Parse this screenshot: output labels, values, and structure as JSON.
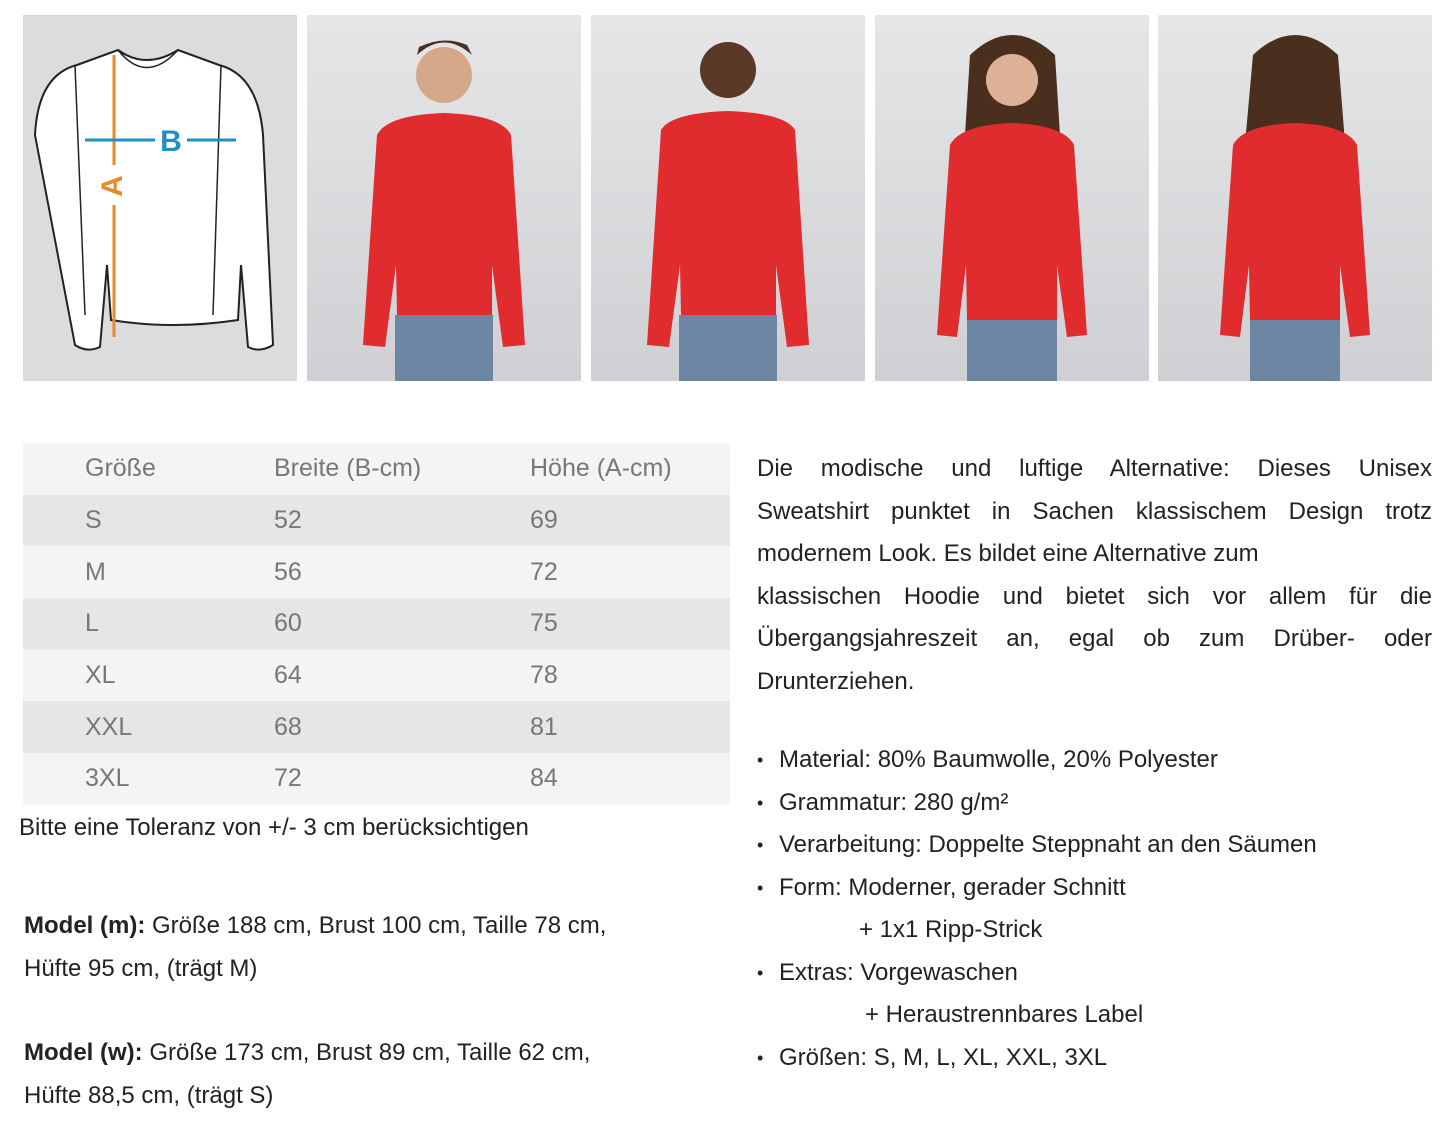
{
  "diagram": {
    "label_a": "A",
    "label_b": "B",
    "color_a": "#e8892b",
    "color_b": "#1f8fc4"
  },
  "photos": [
    {
      "name": "model-m-front"
    },
    {
      "name": "model-m-back"
    },
    {
      "name": "model-w-front"
    },
    {
      "name": "model-w-back"
    }
  ],
  "garment_color": "#e02b2f",
  "table": {
    "headers": [
      "Größe",
      "Breite (B-cm)",
      "Höhe (A-cm)"
    ],
    "rows": [
      [
        "S",
        "52",
        "69"
      ],
      [
        "M",
        "56",
        "72"
      ],
      [
        "L",
        "60",
        "75"
      ],
      [
        "XL",
        "64",
        "78"
      ],
      [
        "XXL",
        "68",
        "81"
      ],
      [
        "3XL",
        "72",
        "84"
      ]
    ]
  },
  "tolerance": "Bitte eine Toleranz von +/- 3 cm berücksichtigen",
  "model_m": {
    "label": "Model (m):",
    "line1": "Größe 188 cm, Brust 100 cm, Taille 78 cm,",
    "line2": "Hüfte 95 cm, (trägt M)"
  },
  "model_w": {
    "label": "Model (w):",
    "line1": "Größe 173 cm, Brust 89 cm, Taille 62 cm,",
    "line2": "Hüfte 88,5 cm, (trägt S)"
  },
  "description": [
    "Die modische und luftige Alternative: Dieses Unisex",
    "Sweatshirt punktet in Sachen klassischem Design trotz",
    "modernem Look. Es bildet eine Alternative zum",
    "klassischen Hoodie und bietet sich vor allem für die",
    "Übergangsjahreszeit an, egal ob zum Drüber- oder",
    "Drunterziehen."
  ],
  "specs": {
    "material": "Material: 80% Baumwolle, 20% Polyester",
    "grammatur": "Grammatur: 280 g/m²",
    "verarbeitung": "Verarbeitung: Doppelte Steppnaht an den Säumen",
    "form": "Form: Moderner, gerader Schnitt",
    "form_cont": "+ 1x1 Ripp-Strick",
    "extras": "Extras: Vorgewaschen",
    "extras_cont": "+ Heraustrennbares Label",
    "groessen": "Größen:  S, M, L, XL, XXL, 3XL"
  }
}
